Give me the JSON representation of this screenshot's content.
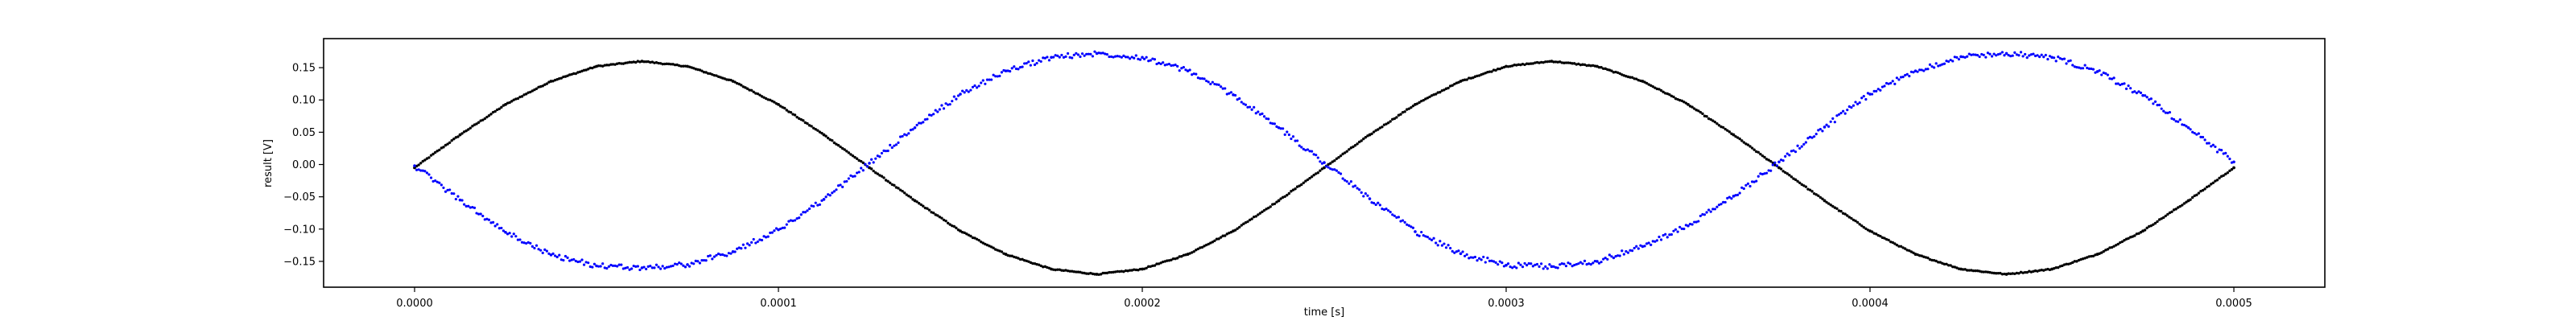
{
  "chart_data": {
    "type": "scatter",
    "title": "",
    "xlabel": "time [s]",
    "ylabel": "result [V]",
    "xlim": [
      -2.5e-05,
      0.000525
    ],
    "ylim": [
      -0.19,
      0.195
    ],
    "grid": false,
    "x_ticks": [
      0.0,
      0.0001,
      0.0002,
      0.0003,
      0.0004,
      0.0005
    ],
    "x_tick_labels": [
      "0.0000",
      "0.0001",
      "0.0002",
      "0.0003",
      "0.0004",
      "0.0005"
    ],
    "y_ticks": [
      -0.15,
      -0.1,
      -0.05,
      0.0,
      0.05,
      0.1,
      0.15
    ],
    "y_tick_labels": [
      "−0.15",
      "−0.10",
      "−0.05",
      "0.00",
      "0.05",
      "0.10",
      "0.15"
    ],
    "series": [
      {
        "color": "#000000",
        "description_points": "sinusoid, 4000 Hz, amplitude ~0.165 V, dense dots",
        "x": [
          0.0,
          1.25e-05,
          2.5e-05,
          3.75e-05,
          5e-05,
          6.25e-05,
          7.5e-05,
          8.75e-05,
          0.0001,
          0.0001125,
          0.000125,
          0.0001375,
          0.00015,
          0.0001625,
          0.000175,
          0.0001875,
          0.0002,
          0.0002125,
          0.000225,
          0.0002375,
          0.00025,
          0.0002625,
          0.000275,
          0.0002875,
          0.0003,
          0.0003125,
          0.000325,
          0.0003375,
          0.00035,
          0.0003625,
          0.000375,
          0.0003875,
          0.0004,
          0.0004125,
          0.000425,
          0.0004375,
          0.00045,
          0.0004625,
          0.000475,
          0.0004875,
          0.0005
        ],
        "y": [
          -0.005,
          0.046,
          0.093,
          0.129,
          0.152,
          0.16,
          0.152,
          0.129,
          0.093,
          0.046,
          -0.005,
          -0.056,
          -0.103,
          -0.139,
          -0.162,
          -0.17,
          -0.162,
          -0.139,
          -0.103,
          -0.056,
          -0.005,
          0.046,
          0.093,
          0.129,
          0.152,
          0.16,
          0.152,
          0.129,
          0.093,
          0.046,
          -0.005,
          -0.056,
          -0.103,
          -0.139,
          -0.162,
          -0.17,
          -0.162,
          -0.139,
          -0.103,
          -0.056,
          -0.005
        ]
      },
      {
        "color": "#0000ff",
        "description_points": "noisy sinusoid, 4000 Hz, amplitude ~0.165 V, inverted phase",
        "x": [
          0.0,
          1.25e-05,
          2.5e-05,
          3.75e-05,
          5e-05,
          6.25e-05,
          7.5e-05,
          8.75e-05,
          0.0001,
          0.0001125,
          0.000125,
          0.0001375,
          0.00015,
          0.0001625,
          0.000175,
          0.0001875,
          0.0002,
          0.0002125,
          0.000225,
          0.0002375,
          0.00025,
          0.0002625,
          0.000275,
          0.0002875,
          0.0003,
          0.0003125,
          0.000325,
          0.0003375,
          0.00035,
          0.0003625,
          0.000375,
          0.0003875,
          0.0004,
          0.0004125,
          0.000425,
          0.0004375,
          0.00045,
          0.0004625,
          0.000475,
          0.0004875,
          0.0005
        ],
        "y": [
          -0.002,
          -0.055,
          -0.105,
          -0.14,
          -0.157,
          -0.16,
          -0.155,
          -0.135,
          -0.101,
          -0.054,
          0.002,
          0.057,
          0.109,
          0.145,
          0.166,
          0.172,
          0.166,
          0.145,
          0.108,
          0.057,
          0.003,
          -0.053,
          -0.104,
          -0.138,
          -0.156,
          -0.158,
          -0.15,
          -0.127,
          -0.095,
          -0.049,
          0.004,
          0.058,
          0.109,
          0.145,
          0.167,
          0.172,
          0.166,
          0.144,
          0.107,
          0.057,
          0.004
        ]
      }
    ]
  }
}
